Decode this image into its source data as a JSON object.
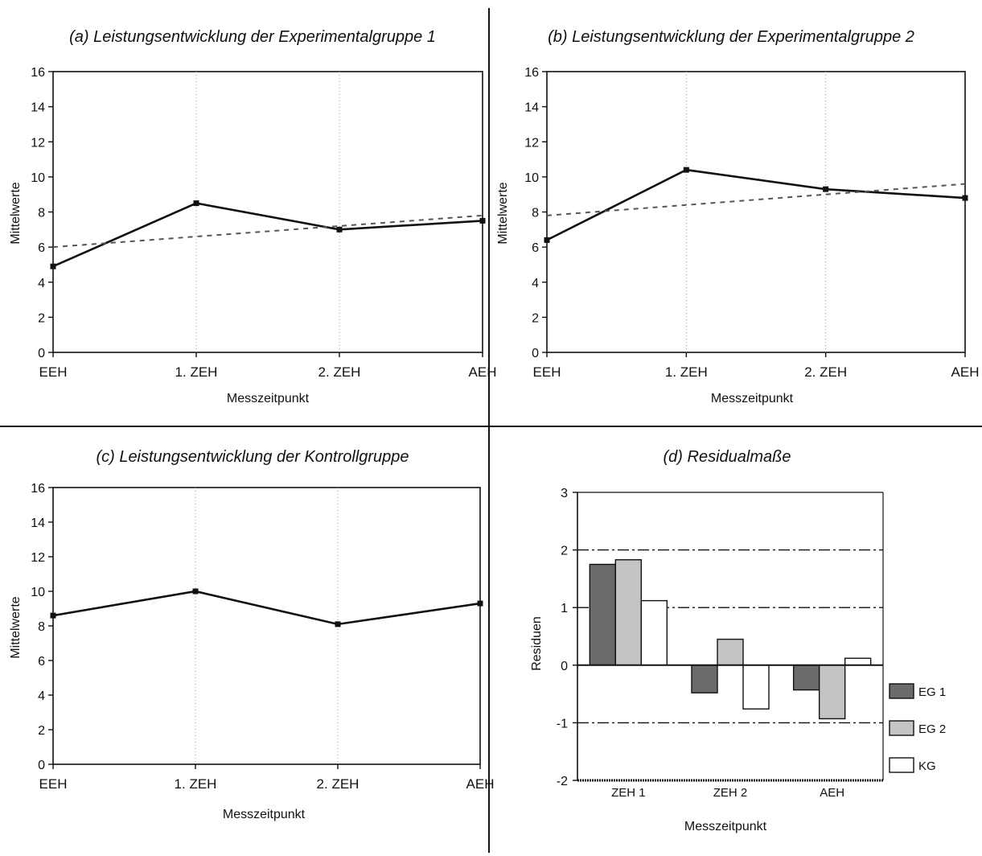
{
  "colors": {
    "ink": "#111111",
    "grid": "#9a9a9a",
    "eg1": "#6b6b6b",
    "eg2": "#c4c4c4",
    "kg": "#ffffff"
  },
  "panels": [
    {
      "title": "(a) Leistungsentwicklung der Experimentalgruppe 1",
      "xlabel": "Messzeitpunkt",
      "ylabel": "Mittelwerte"
    },
    {
      "title": "(b) Leistungsentwicklung der Experimentalgruppe 2",
      "xlabel": "Messzeitpunkt",
      "ylabel": "Mittelwerte"
    },
    {
      "title": "(c) Leistungsentwicklung der Kontrollgruppe",
      "xlabel": "Messzeitpunkt",
      "ylabel": "Mittelwerte"
    },
    {
      "title": "(d) Residualmaße",
      "xlabel": "Messzeitpunkt",
      "ylabel": "Residuen"
    }
  ],
  "chart_data": [
    {
      "type": "line",
      "title": "(a) Leistungsentwicklung der Experimentalgruppe 1",
      "xlabel": "Messzeitpunkt",
      "ylabel": "Mittelwerte",
      "categories": [
        "EEH",
        "1. ZEH",
        "2. ZEH",
        "AEH"
      ],
      "ylim": [
        0,
        16
      ],
      "yticks": [
        0,
        2,
        4,
        6,
        8,
        10,
        12,
        14,
        16
      ],
      "series": [
        {
          "values": [
            4.9,
            8.5,
            7.0,
            7.5
          ],
          "style": "solid"
        },
        {
          "values": [
            6.0,
            6.6,
            7.2,
            7.8
          ],
          "style": "dotted"
        }
      ]
    },
    {
      "type": "line",
      "title": "(b) Leistungsentwicklung der Experimentalgruppe 2",
      "xlabel": "Messzeitpunkt",
      "ylabel": "Mittelwerte",
      "categories": [
        "EEH",
        "1. ZEH",
        "2. ZEH",
        "AEH"
      ],
      "ylim": [
        0,
        16
      ],
      "yticks": [
        0,
        2,
        4,
        6,
        8,
        10,
        12,
        14,
        16
      ],
      "series": [
        {
          "values": [
            6.4,
            10.4,
            9.3,
            8.8
          ],
          "style": "solid"
        },
        {
          "values": [
            7.8,
            8.4,
            9.0,
            9.6
          ],
          "style": "dotted"
        }
      ]
    },
    {
      "type": "line",
      "title": "(c) Leistungsentwicklung der Kontrollgruppe",
      "xlabel": "Messzeitpunkt",
      "ylabel": "Mittelwerte",
      "categories": [
        "EEH",
        "1. ZEH",
        "2. ZEH",
        "AEH"
      ],
      "ylim": [
        0,
        16
      ],
      "yticks": [
        0,
        2,
        4,
        6,
        8,
        10,
        12,
        14,
        16
      ],
      "series": [
        {
          "values": [
            8.6,
            10.0,
            8.1,
            9.3
          ],
          "style": "solid"
        }
      ]
    },
    {
      "type": "bar",
      "title": "(d) Residualmaße",
      "xlabel": "Messzeitpunkt",
      "ylabel": "Residuen",
      "categories": [
        "ZEH 1",
        "ZEH 2",
        "AEH"
      ],
      "ylim": [
        -2,
        3
      ],
      "yticks": [
        -2,
        -1,
        0,
        1,
        2,
        3
      ],
      "legend": "right",
      "series": [
        {
          "name": "EG 1",
          "values": [
            1.75,
            -0.48,
            -0.43
          ],
          "color": "#6b6b6b"
        },
        {
          "name": "EG 2",
          "values": [
            1.83,
            0.45,
            -0.93
          ],
          "color": "#c4c4c4"
        },
        {
          "name": "KG",
          "values": [
            1.12,
            -0.76,
            0.12
          ],
          "color": "#ffffff"
        }
      ]
    }
  ]
}
